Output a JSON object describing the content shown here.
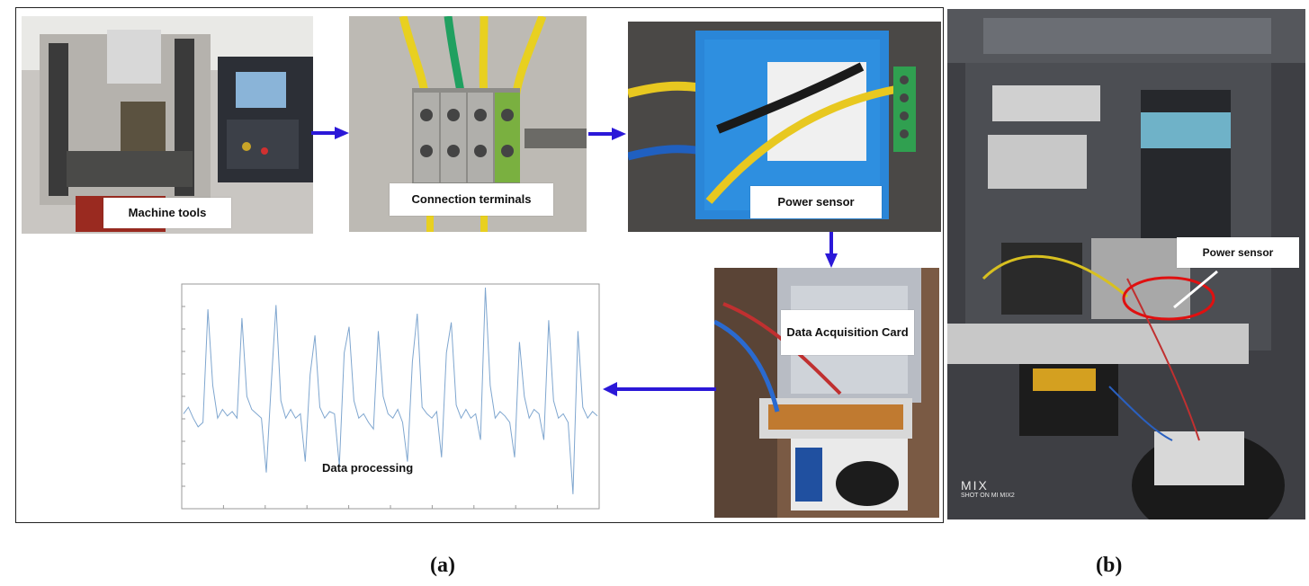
{
  "panel_a": {
    "caption": "(a)",
    "machine_tools_label": "Machine tools",
    "connection_terminals_label": "Connection terminals",
    "power_sensor_label": "Power sensor",
    "daq_card_label": "Data Acquisition Card",
    "data_processing_label": "Data processing"
  },
  "panel_b": {
    "caption": "(b)",
    "power_sensor_label": "Power sensor",
    "watermark_line1": "MIX",
    "watermark_line2": "SHOT ON MI MIX2"
  },
  "colors": {
    "arrow": "#2b18d8",
    "signal_line": "#7fa6cf",
    "highlight_ellipse": "#e01010"
  },
  "chart_data": {
    "type": "line",
    "title": "",
    "xlabel": "",
    "ylabel": "",
    "grid": false,
    "series": [
      {
        "values": [
          0.42,
          0.45,
          0.4,
          0.36,
          0.38,
          0.9,
          0.55,
          0.4,
          0.44,
          0.41,
          0.43,
          0.4,
          0.86,
          0.5,
          0.44,
          0.42,
          0.4,
          0.15,
          0.55,
          0.92,
          0.48,
          0.4,
          0.44,
          0.4,
          0.42,
          0.2,
          0.6,
          0.78,
          0.45,
          0.4,
          0.43,
          0.42,
          0.18,
          0.7,
          0.82,
          0.48,
          0.4,
          0.42,
          0.38,
          0.35,
          0.8,
          0.5,
          0.42,
          0.4,
          0.44,
          0.38,
          0.2,
          0.66,
          0.88,
          0.45,
          0.42,
          0.4,
          0.43,
          0.22,
          0.7,
          0.84,
          0.46,
          0.4,
          0.44,
          0.4,
          0.42,
          0.3,
          1.0,
          0.55,
          0.4,
          0.43,
          0.41,
          0.38,
          0.22,
          0.75,
          0.5,
          0.4,
          0.44,
          0.42,
          0.3,
          0.85,
          0.48,
          0.4,
          0.42,
          0.38,
          0.05,
          0.8,
          0.45,
          0.4,
          0.43,
          0.41
        ]
      }
    ]
  }
}
